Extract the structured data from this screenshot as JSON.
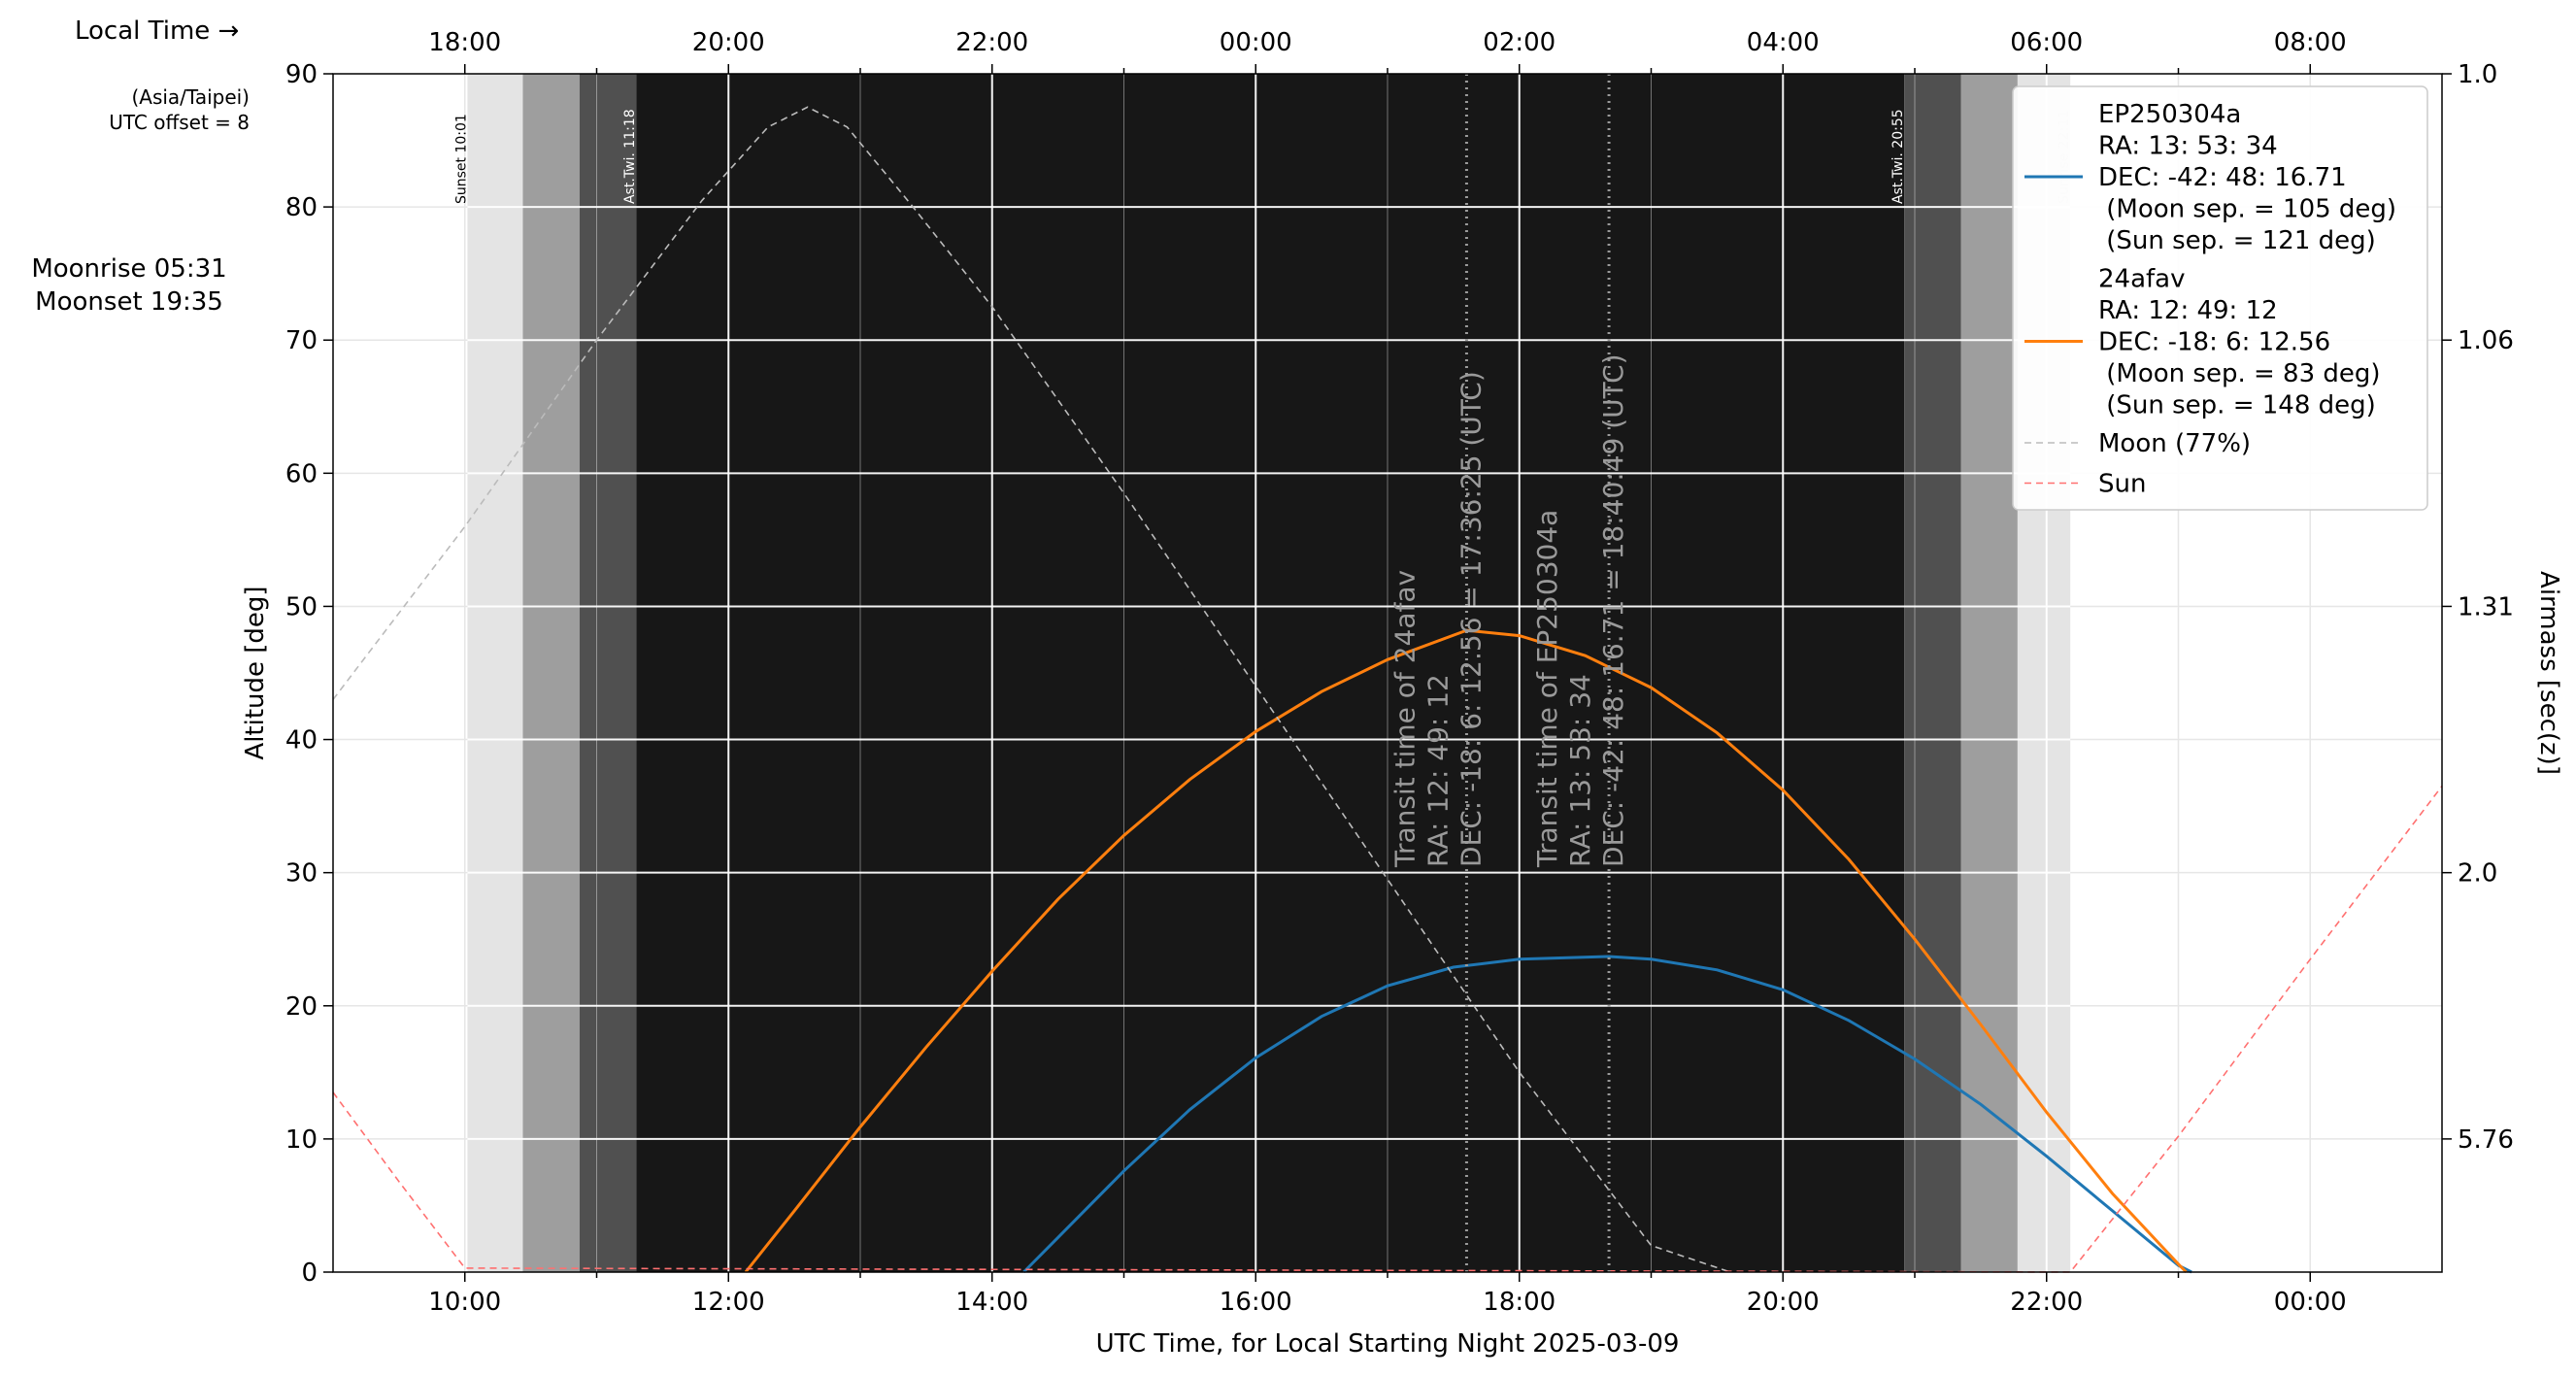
{
  "page": {
    "local_time_label": "Local Time →",
    "timezone_line1": "(Asia/Taipei)",
    "timezone_line2": "UTC offset = 8",
    "moonrise": "Moonrise 05:31",
    "moonset": "Moonset 19:35"
  },
  "chart_data": {
    "type": "line",
    "title": "",
    "xlabel": "UTC Time, for Local Starting Night 2025-03-09",
    "ylabel": "Altitude [deg]",
    "y2label": "Airmass [sec(z)]",
    "xlim_utc_hours": [
      9,
      25
    ],
    "ylim": [
      0,
      90
    ],
    "grid": true,
    "legend_position": "top-right",
    "x_ticks": [
      {
        "value": 10,
        "label": "10:00"
      },
      {
        "value": 12,
        "label": "12:00"
      },
      {
        "value": 14,
        "label": "14:00"
      },
      {
        "value": 16,
        "label": "16:00"
      },
      {
        "value": 18,
        "label": "18:00"
      },
      {
        "value": 20,
        "label": "20:00"
      },
      {
        "value": 22,
        "label": "22:00"
      },
      {
        "value": 24,
        "label": "00:00"
      }
    ],
    "top_ticks": [
      {
        "value": 10,
        "label": "18:00"
      },
      {
        "value": 12,
        "label": "20:00"
      },
      {
        "value": 14,
        "label": "22:00"
      },
      {
        "value": 16,
        "label": "00:00"
      },
      {
        "value": 18,
        "label": "02:00"
      },
      {
        "value": 20,
        "label": "04:00"
      },
      {
        "value": 22,
        "label": "06:00"
      },
      {
        "value": 24,
        "label": "08:00"
      }
    ],
    "y_ticks": [
      0,
      10,
      20,
      30,
      40,
      50,
      60,
      70,
      80,
      90
    ],
    "airmass_ticks": [
      {
        "alt": 90,
        "label": "1.0"
      },
      {
        "alt": 70,
        "label": "1.06"
      },
      {
        "alt": 50,
        "label": "1.31"
      },
      {
        "alt": 30,
        "label": "2.0"
      },
      {
        "alt": 10,
        "label": "5.76"
      }
    ],
    "twilight_bands": [
      {
        "start": 10.02,
        "end": 10.44,
        "color": "#e4e4e4"
      },
      {
        "start": 10.44,
        "end": 10.87,
        "color": "#9e9e9e"
      },
      {
        "start": 10.87,
        "end": 11.3,
        "color": "#505050"
      },
      {
        "start": 11.3,
        "end": 20.92,
        "color": "#171717"
      },
      {
        "start": 20.92,
        "end": 21.35,
        "color": "#505050"
      },
      {
        "start": 21.35,
        "end": 21.78,
        "color": "#9e9e9e"
      },
      {
        "start": 21.78,
        "end": 22.18,
        "color": "#e4e4e4"
      }
    ],
    "twilight_labels": [
      {
        "x": 10.02,
        "text": "Sunset 10:01",
        "color": "#000000"
      },
      {
        "x": 11.3,
        "text": "Ast.Twi. 11:18",
        "color": "#ffffff"
      },
      {
        "x": 20.92,
        "text": "Ast.Twi. 20:55",
        "color": "#ffffff"
      },
      {
        "x": 22.18,
        "text": "Sunrise 22:11",
        "color": "#cccccc"
      }
    ],
    "transits": [
      {
        "x": 17.6,
        "lines": [
          "Transit time of 24afav",
          "RA: 12: 49: 12",
          "DEC: -18: 6: 12.56 = 17:36:25 (UTC)"
        ]
      },
      {
        "x": 18.68,
        "lines": [
          "Transit time of EP250304a",
          "RA: 13: 53: 34",
          "DEC: -42: 48: 16.71 = 18:40:49 (UTC)"
        ]
      }
    ],
    "series": [
      {
        "name": "EP250304a",
        "legend_lines": [
          "EP250304a",
          "RA: 13: 53: 34",
          "DEC: -42: 48: 16.71",
          " (Moon sep. = 105 deg)",
          " (Sun sep. = 121 deg)"
        ],
        "color": "#1f77b4",
        "style": "solid",
        "x": [
          14.24,
          14.5,
          15.0,
          15.5,
          16.0,
          16.5,
          17.0,
          17.5,
          18.0,
          18.68,
          19.0,
          19.5,
          20.0,
          20.5,
          21.0,
          21.5,
          22.0,
          22.5,
          23.0,
          23.1
        ],
        "y": [
          0,
          2.6,
          7.6,
          12.2,
          16.1,
          19.2,
          21.5,
          22.9,
          23.5,
          23.7,
          23.5,
          22.7,
          21.2,
          18.9,
          16.0,
          12.6,
          8.7,
          4.6,
          0.5,
          0
        ]
      },
      {
        "name": "24afav",
        "legend_lines": [
          "24afav",
          "RA: 12: 49: 12",
          "DEC: -18: 6: 12.56",
          " (Moon sep. = 83 deg)",
          " (Sun sep. = 148 deg)"
        ],
        "color": "#ff7f0e",
        "style": "solid",
        "x": [
          12.13,
          12.5,
          13.0,
          13.5,
          14.0,
          14.5,
          15.0,
          15.5,
          16.0,
          16.5,
          17.0,
          17.6,
          18.0,
          18.5,
          19.0,
          19.5,
          20.0,
          20.5,
          21.0,
          21.5,
          22.0,
          22.5,
          23.0,
          23.06
        ],
        "y": [
          0,
          4.6,
          10.9,
          16.9,
          22.6,
          28.0,
          32.8,
          37.0,
          40.6,
          43.6,
          46.0,
          48.2,
          47.8,
          46.3,
          43.9,
          40.5,
          36.2,
          31.0,
          25.0,
          18.6,
          12.0,
          5.9,
          0.6,
          0
        ]
      },
      {
        "name": "Moon (77%)",
        "legend_lines": [
          "Moon (77%)"
        ],
        "color": "#bbbbbb",
        "style": "dashed",
        "x": [
          9.0,
          10.0,
          11.0,
          11.8,
          12.3,
          12.6,
          12.9,
          13.4,
          14.0,
          15.0,
          16.0,
          17.0,
          18.0,
          19.0,
          19.6
        ],
        "y": [
          43,
          56,
          70,
          80.5,
          86,
          87.5,
          86,
          80,
          72.5,
          58.5,
          44,
          29.5,
          15,
          2,
          0
        ]
      },
      {
        "name": "Sun",
        "legend_lines": [
          "Sun"
        ],
        "color": "#ff7070",
        "style": "dashed",
        "x": [
          9.0,
          9.5,
          10.0,
          22.18,
          23.0,
          24.0,
          25.0
        ],
        "y": [
          13.5,
          6.8,
          0.3,
          0,
          10.2,
          23.5,
          36.5
        ]
      }
    ]
  }
}
